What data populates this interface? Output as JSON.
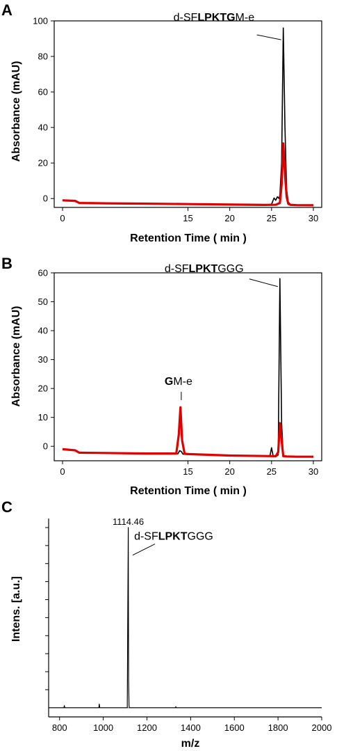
{
  "chart_data": [
    {
      "type": "line",
      "panel_label": "A",
      "xlabel": "Retention Time ( min )",
      "ylabel": "Absorbance (mAU)",
      "xlim": [
        -1,
        31
      ],
      "ylim": [
        -5,
        100
      ],
      "xticks": [
        "0",
        "15",
        "20",
        "25",
        "30"
      ],
      "xtick_values": [
        0,
        15,
        20,
        25,
        30
      ],
      "yticks": [
        "0",
        "20",
        "40",
        "60",
        "80",
        "100"
      ],
      "ytick_values": [
        0,
        20,
        40,
        60,
        80,
        100
      ],
      "annotations": [
        {
          "parts": [
            {
              "text": "d-SF",
              "bold": false
            },
            {
              "text": "LPKTG",
              "bold": true
            },
            {
              "text": "M-e",
              "bold": false
            }
          ],
          "at": [
            26.4,
            89
          ]
        }
      ],
      "series": [
        {
          "color": "#000000",
          "x": [
            0,
            1.5,
            2.0,
            5,
            10,
            15,
            20,
            24,
            25.0,
            25.3,
            25.5,
            25.7,
            25.9,
            26.0,
            26.2,
            26.4,
            26.6,
            26.8,
            27.0,
            27.3,
            28,
            30
          ],
          "y": [
            -1,
            -1.3,
            -2.5,
            -2.7,
            -2.9,
            -3.1,
            -3.4,
            -3.6,
            -3.2,
            0.3,
            -1,
            1,
            0,
            2,
            20,
            96,
            40,
            5,
            -2,
            -3.5,
            -3.7,
            -3.8
          ]
        },
        {
          "color": "#e00000",
          "x": [
            0,
            1.5,
            2.0,
            5,
            10,
            15,
            20,
            24,
            25.5,
            26.0,
            26.2,
            26.4,
            26.6,
            26.8,
            27.0,
            27.3,
            28,
            30
          ],
          "y": [
            -1,
            -1.3,
            -2.5,
            -2.7,
            -2.9,
            -3.1,
            -3.4,
            -3.6,
            -3.5,
            -2.5,
            8,
            31,
            14,
            1,
            -3,
            -3.6,
            -3.7,
            -3.8
          ]
        }
      ]
    },
    {
      "type": "line",
      "panel_label": "B",
      "xlabel": "Retention Time ( min )",
      "ylabel": "Absorbance (mAU)",
      "xlim": [
        -1,
        31
      ],
      "ylim": [
        -5,
        60
      ],
      "xticks": [
        "0",
        "15",
        "20",
        "25",
        "30"
      ],
      "xtick_values": [
        0,
        15,
        20,
        25,
        30
      ],
      "yticks": [
        "0",
        "10",
        "20",
        "30",
        "40",
        "50",
        "60"
      ],
      "ytick_values": [
        0,
        10,
        20,
        30,
        40,
        50,
        60
      ],
      "annotations": [
        {
          "parts": [
            {
              "text": "d-SF",
              "bold": false
            },
            {
              "text": "LPKT",
              "bold": true
            },
            {
              "text": "GGG",
              "bold": false
            }
          ],
          "at": [
            26.0,
            55
          ]
        },
        {
          "parts": [
            {
              "text": "G",
              "bold": true
            },
            {
              "text": "M-e",
              "bold": false
            }
          ],
          "at": [
            14.2,
            15
          ]
        }
      ],
      "series": [
        {
          "color": "#000000",
          "x": [
            0,
            1.5,
            2.0,
            5,
            10,
            13.8,
            14.0,
            14.2,
            14.4,
            15,
            20,
            24.8,
            25.0,
            25.2,
            25.5,
            25.8,
            26.0,
            26.2,
            26.4,
            26.8,
            28,
            30
          ],
          "y": [
            -1,
            -1.4,
            -2.2,
            -2.3,
            -2.5,
            -2.6,
            -1.5,
            -1.8,
            -2.7,
            -2.8,
            -3.2,
            -3.4,
            -0.5,
            -3.5,
            -3.5,
            -3,
            58,
            8,
            -3.5,
            -3.6,
            -3.6,
            -3.6
          ]
        },
        {
          "color": "#e00000",
          "x": [
            0,
            1.5,
            2.0,
            5,
            10,
            13.6,
            13.9,
            14.1,
            14.3,
            14.6,
            15,
            20,
            25.5,
            25.8,
            26.0,
            26.2,
            26.4,
            26.8,
            28,
            30
          ],
          "y": [
            -1,
            -1.4,
            -2.2,
            -2.3,
            -2.5,
            -2.5,
            4,
            13.5,
            2,
            -2.6,
            -2.7,
            -3.2,
            -3.4,
            -2,
            8,
            2,
            -3.4,
            -3.5,
            -3.6,
            -3.6
          ]
        }
      ]
    },
    {
      "type": "line",
      "panel_label": "C",
      "xlabel": "m/z",
      "ylabel": "Intens. [a.u.]",
      "xlim": [
        750,
        2000
      ],
      "ylim": [
        -0.02,
        1.05
      ],
      "xticks": [
        "800",
        "1000",
        "1200",
        "1400",
        "1600",
        "1800",
        "2000"
      ],
      "xtick_values": [
        800,
        1000,
        1200,
        1400,
        1600,
        1800,
        2000
      ],
      "ytick_values": [
        0.1,
        0.2,
        0.3,
        0.4,
        0.5,
        0.6,
        0.7,
        0.8,
        0.9,
        1.0
      ],
      "peak_label": {
        "text": "1114.46",
        "x": 1114.46,
        "y": 1.0
      },
      "annotations": [
        {
          "parts": [
            {
              "text": "d-SF",
              "bold": false
            },
            {
              "text": "LPKT",
              "bold": true
            },
            {
              "text": "GGG",
              "bold": false
            }
          ],
          "at": [
            1116,
            0.87
          ]
        }
      ],
      "series": [
        {
          "color": "#000000",
          "x": [
            750,
            820,
            822,
            824,
            900,
            980,
            982,
            984,
            1050,
            1100,
            1110,
            1112,
            1114,
            1114.46,
            1115,
            1116,
            1118,
            1120,
            1200,
            1300,
            1330,
            1332,
            1334,
            1400,
            1600,
            1800,
            2000
          ],
          "y": [
            0,
            0,
            0.012,
            0,
            0,
            0,
            0.02,
            0,
            0,
            0,
            0,
            0.45,
            0.85,
            1.0,
            0.6,
            0.15,
            0.01,
            0,
            0,
            0,
            0,
            0.006,
            0,
            0,
            0,
            0,
            0
          ]
        }
      ]
    }
  ]
}
